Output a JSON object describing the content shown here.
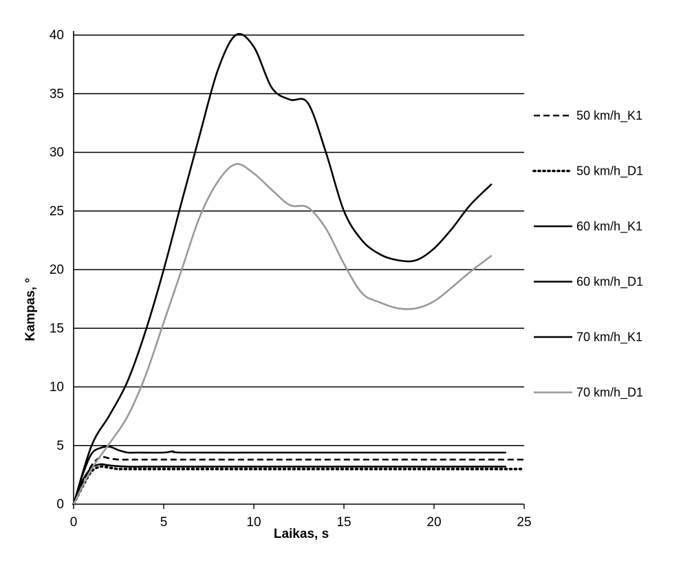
{
  "chart_data": {
    "type": "line",
    "title": "",
    "xlabel": "Laikas, s",
    "ylabel": "Kampas, °",
    "xlim": [
      0,
      25
    ],
    "ylim": [
      0,
      40
    ],
    "xticks": [
      0,
      5,
      10,
      15,
      20,
      25
    ],
    "yticks": [
      0,
      5,
      10,
      15,
      20,
      25,
      30,
      35,
      40
    ],
    "grid": "horizontal",
    "legend_position": "right",
    "series": [
      {
        "name": "50 km/h_K1",
        "style": "dashed",
        "color": "#000000",
        "x": [
          0,
          0.5,
          1,
          1.5,
          2,
          2.5,
          3,
          5,
          10,
          15,
          20,
          25
        ],
        "y": [
          0,
          1.8,
          3.3,
          4.0,
          3.9,
          3.8,
          3.8,
          3.8,
          3.8,
          3.8,
          3.8,
          3.8
        ]
      },
      {
        "name": "50 km/h_D1",
        "style": "dotted",
        "color": "#000000",
        "x": [
          0,
          0.5,
          1,
          1.5,
          2,
          2.5,
          3,
          5,
          10,
          15,
          20,
          25
        ],
        "y": [
          0,
          1.5,
          2.8,
          3.2,
          3.1,
          3.0,
          3.0,
          3.0,
          3.0,
          3.0,
          3.0,
          3.0
        ]
      },
      {
        "name": "60 km/h_K1",
        "style": "solid",
        "color": "#000000",
        "x": [
          0,
          0.5,
          1,
          1.5,
          2,
          2.5,
          3,
          3.5,
          5,
          5.5,
          6,
          10,
          15,
          20,
          24
        ],
        "y": [
          0,
          2.5,
          4.3,
          4.8,
          4.9,
          4.6,
          4.4,
          4.4,
          4.4,
          4.5,
          4.4,
          4.4,
          4.4,
          4.4,
          4.4
        ]
      },
      {
        "name": "60 km/h_D1",
        "style": "solid",
        "color": "#000000",
        "x": [
          0,
          0.5,
          1,
          1.5,
          2,
          3,
          5,
          10,
          15,
          20,
          24
        ],
        "y": [
          0,
          2.0,
          3.1,
          3.4,
          3.3,
          3.2,
          3.2,
          3.2,
          3.2,
          3.2,
          3.2
        ]
      },
      {
        "name": "70 km/h_K1",
        "style": "solid",
        "color": "#000000",
        "x": [
          0,
          1,
          2,
          3,
          4,
          5,
          6,
          7,
          8,
          9,
          10,
          11,
          12,
          13,
          14,
          15,
          16,
          17,
          18,
          19,
          20,
          21,
          22,
          23.2
        ],
        "y": [
          0,
          5.0,
          7.6,
          10.5,
          14.8,
          20.0,
          25.8,
          31.5,
          37.0,
          40.0,
          39.0,
          35.5,
          34.5,
          34.2,
          30.0,
          25.0,
          22.5,
          21.3,
          20.8,
          20.8,
          21.8,
          23.5,
          25.5,
          27.3
        ]
      },
      {
        "name": "70 km/h_D1",
        "style": "solid",
        "color": "#999999",
        "x": [
          0,
          1,
          2,
          3,
          4,
          5,
          6,
          7,
          8,
          9,
          10,
          11,
          12,
          13,
          14,
          15,
          16,
          17,
          18,
          19,
          20,
          21,
          22,
          23.2
        ],
        "y": [
          0,
          3.0,
          5.2,
          7.5,
          11.0,
          15.5,
          20.0,
          24.5,
          27.5,
          29.0,
          28.2,
          26.8,
          25.5,
          25.3,
          23.5,
          20.5,
          18.0,
          17.2,
          16.7,
          16.7,
          17.3,
          18.5,
          19.8,
          21.2
        ]
      }
    ]
  }
}
